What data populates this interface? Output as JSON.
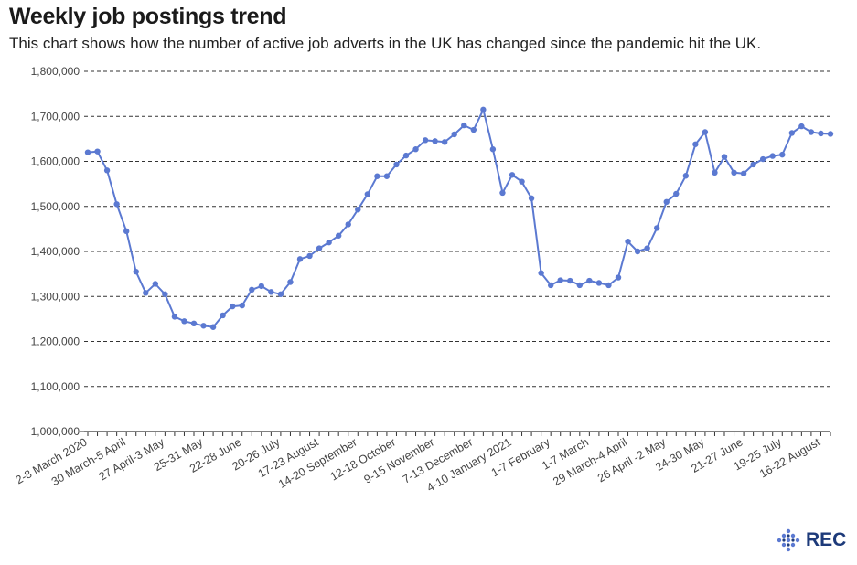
{
  "title": "Weekly job postings trend",
  "subtitle": "This chart shows how the number of active job adverts in the UK has changed since the pandemic hit the UK.",
  "logo_text": "REC",
  "colors": {
    "line": "#5b79d1",
    "grid": "#333333",
    "logo": "#1d3a7a"
  },
  "chart_data": {
    "type": "line",
    "title": "Weekly job postings trend",
    "ylim": [
      1000000,
      1800000
    ],
    "y_ticks": [
      1000000,
      1100000,
      1200000,
      1300000,
      1400000,
      1500000,
      1600000,
      1700000,
      1800000
    ],
    "y_tick_labels": [
      "1,000,000",
      "1,100,000",
      "1,200,000",
      "1,300,000",
      "1,400,000",
      "1,500,000",
      "1,600,000",
      "1,700,000",
      "1,800,000"
    ],
    "grid": true,
    "x_tick_labels": [
      {
        "index": 0,
        "label": "2-8 March 2020"
      },
      {
        "index": 4,
        "label": "30 March-5 April"
      },
      {
        "index": 8,
        "label": "27 April-3 May"
      },
      {
        "index": 12,
        "label": "25-31 May"
      },
      {
        "index": 16,
        "label": "22-28 June"
      },
      {
        "index": 20,
        "label": "20-26 July"
      },
      {
        "index": 24,
        "label": "17-23 August"
      },
      {
        "index": 28,
        "label": "14-20 September"
      },
      {
        "index": 32,
        "label": "12-18 October"
      },
      {
        "index": 36,
        "label": "9-15 November"
      },
      {
        "index": 40,
        "label": "7-13 December"
      },
      {
        "index": 44,
        "label": "4-10 January 2021"
      },
      {
        "index": 48,
        "label": "1-7 February"
      },
      {
        "index": 52,
        "label": "1-7 March"
      },
      {
        "index": 56,
        "label": "29 March-4 April"
      },
      {
        "index": 60,
        "label": "26 April -2 May"
      },
      {
        "index": 64,
        "label": "24-30 May"
      },
      {
        "index": 68,
        "label": "21-27 June"
      },
      {
        "index": 72,
        "label": "19-25 July"
      },
      {
        "index": 76,
        "label": "16-22 August"
      }
    ],
    "series": [
      {
        "values": [
          1620000,
          1622000,
          1580000,
          1505000,
          1445000,
          1355000,
          1308000,
          1328000,
          1305000,
          1255000,
          1245000,
          1240000,
          1235000,
          1232000,
          1258000,
          1278000,
          1280000,
          1315000,
          1323000,
          1310000,
          1305000,
          1332000,
          1383000,
          1390000,
          1407000,
          1420000,
          1435000,
          1460000,
          1493000,
          1527000,
          1567000,
          1567000,
          1593000,
          1613000,
          1627000,
          1647000,
          1645000,
          1643000,
          1660000,
          1680000,
          1670000,
          1715000,
          1627000,
          1530000,
          1570000,
          1555000,
          1518000,
          1352000,
          1325000,
          1336000,
          1335000,
          1325000,
          1335000,
          1330000,
          1325000,
          1342000,
          1422000,
          1400000,
          1407000,
          1452000,
          1510000,
          1528000,
          1568000,
          1638000,
          1665000,
          1575000,
          1610000,
          1575000,
          1573000,
          1593000,
          1605000,
          1612000,
          1615000,
          1663000,
          1678000,
          1665000,
          1662000,
          1661000
        ]
      }
    ]
  }
}
